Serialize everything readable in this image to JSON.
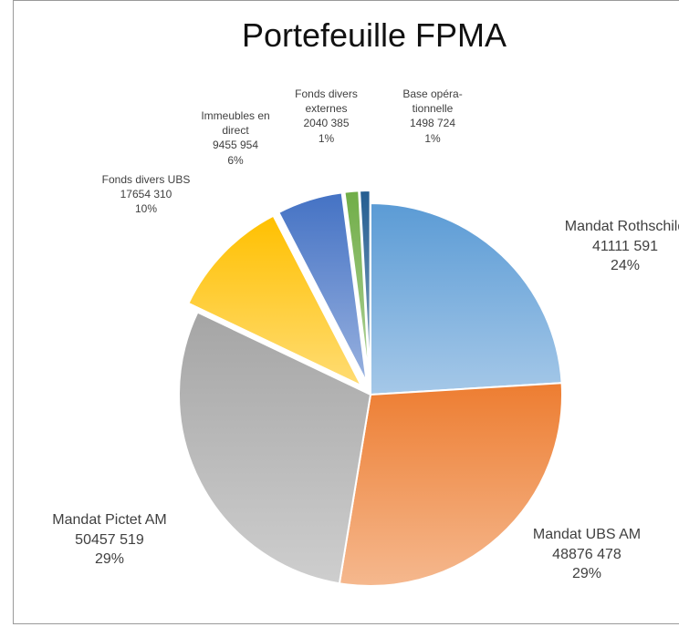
{
  "chart_data": {
    "type": "pie",
    "title": "Portefeuille FPMA",
    "categories": [
      "Mandat Rothschild",
      "Mandat UBS AM",
      "Mandat Pictet AM",
      "Fonds divers UBS",
      "Immeubles en direct",
      "Fonds divers externes",
      "Base opéra-tionnelle"
    ],
    "values": [
      41111591,
      48876478,
      50457519,
      17654310,
      9455954,
      2040385,
      1498724
    ],
    "value_labels": [
      "41111 591",
      "48876 478",
      "50457 519",
      "17654 310",
      "9455 954",
      "2040 385",
      "1498 724"
    ],
    "percents": [
      24,
      29,
      29,
      10,
      6,
      1,
      1
    ],
    "percent_labels": [
      "24%",
      "29%",
      "29%",
      "10%",
      "6%",
      "1%",
      "1%"
    ],
    "colors": [
      "#5b9bd5",
      "#ed7d31",
      "#a5a5a5",
      "#ffc000",
      "#4472c4",
      "#70ad47",
      "#255e91"
    ],
    "exploded": [
      false,
      false,
      false,
      true,
      true,
      true,
      true
    ]
  }
}
